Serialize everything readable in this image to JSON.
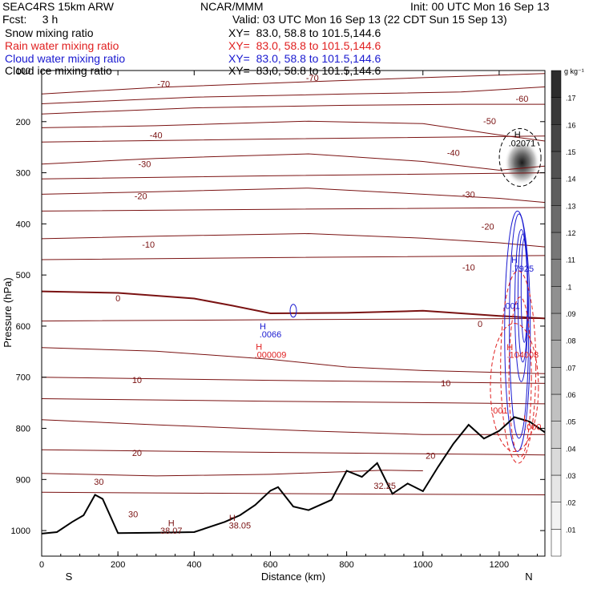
{
  "header": {
    "left_line1": "SEAC4RS 15km ARW",
    "left_line2": "Fcst:     3 h",
    "center_line1": "NCAR/MMM",
    "right_line1": "Init: 00 UTC Mon 16 Sep 13",
    "right_line2": "Valid: 03 UTC Mon 16 Sep 13 (22 CDT Sun 15 Sep 13)"
  },
  "legend": [
    {
      "label": "Snow mixing ratio",
      "xy": "XY=  83.0, 58.8 to 101.5,144.6",
      "color": "#000000"
    },
    {
      "label": "Rain water mixing ratio",
      "xy": "XY=  83.0, 58.8 to 101.5,144.6",
      "color": "#e02020"
    },
    {
      "label": "Cloud water mixing ratio",
      "xy": "XY=  83.0, 58.8 to 101.5,144.6",
      "color": "#1a1ad0"
    },
    {
      "label": "Cloud ice mixing ratio",
      "xy": "XY=  83.0, 58.8 to 101.5,144.6",
      "color": "#000000"
    }
  ],
  "chart_data": {
    "type": "contour-cross-section",
    "xlabel": "Distance (km)",
    "ylabel": "Pressure (hPa)",
    "xlim": [
      0,
      1320
    ],
    "ylim": [
      1050,
      100
    ],
    "x_ticks": [
      0,
      200,
      400,
      600,
      800,
      1000,
      1200
    ],
    "y_ticks": [
      100,
      200,
      300,
      400,
      500,
      600,
      700,
      800,
      900,
      1000
    ],
    "x_ends": {
      "left": "S",
      "right": "N"
    },
    "colorbar": {
      "units": "g kg⁻¹",
      "levels": [
        ".01",
        ".02",
        ".03",
        ".04",
        ".05",
        ".06",
        ".07",
        ".08",
        ".09",
        ".1",
        ".11",
        ".12",
        ".13",
        ".14",
        ".15",
        ".16",
        ".17"
      ]
    },
    "temperature_contours": [
      {
        "label": "-70",
        "p": [
          [
            0,
            146
          ],
          [
            300,
            133
          ],
          [
            700,
            122
          ],
          [
            1000,
            114
          ],
          [
            1320,
            106
          ]
        ],
        "labels_at": [
          [
            320,
            126
          ],
          [
            710,
            114
          ]
        ]
      },
      {
        "label": "-60",
        "p": [
          [
            0,
            165
          ],
          [
            400,
            152
          ],
          [
            800,
            146
          ],
          [
            1100,
            142
          ],
          [
            1320,
            132
          ]
        ],
        "labels_at": [
          [
            1260,
            155
          ]
        ]
      },
      {
        "label": "-50",
        "p": [
          [
            0,
            185
          ],
          [
            400,
            173
          ],
          [
            800,
            168
          ],
          [
            1100,
            166
          ],
          [
            1320,
            166
          ]
        ],
        "labels_at": [
          [
            1175,
            199
          ]
        ]
      },
      {
        "label": "-40",
        "p": [
          [
            0,
            212
          ],
          [
            300,
            208
          ],
          [
            700,
            199
          ],
          [
            1000,
            204
          ],
          [
            1200,
            226
          ],
          [
            1320,
            238
          ]
        ],
        "labels_at": [
          [
            300,
            226
          ],
          [
            1080,
            261
          ]
        ]
      },
      {
        "label": "-30",
        "p": [
          [
            0,
            283
          ],
          [
            300,
            272
          ],
          [
            700,
            263
          ],
          [
            1000,
            278
          ],
          [
            1200,
            295
          ],
          [
            1320,
            287
          ]
        ],
        "labels_at": [
          [
            270,
            283
          ],
          [
            1120,
            342
          ]
        ]
      },
      {
        "label": "-20",
        "p": [
          [
            0,
            342
          ],
          [
            300,
            337
          ],
          [
            700,
            330
          ],
          [
            1000,
            342
          ],
          [
            1200,
            350
          ],
          [
            1320,
            358
          ]
        ],
        "labels_at": [
          [
            260,
            345
          ],
          [
            1170,
            405
          ]
        ]
      },
      {
        "label": "-10",
        "p": [
          [
            0,
            429
          ],
          [
            300,
            424
          ],
          [
            700,
            419
          ],
          [
            1000,
            428
          ],
          [
            1200,
            437
          ],
          [
            1320,
            445
          ]
        ],
        "labels_at": [
          [
            280,
            440
          ],
          [
            1120,
            485
          ]
        ]
      },
      {
        "label": "0",
        "p": [
          [
            0,
            532
          ],
          [
            200,
            535
          ],
          [
            400,
            546
          ],
          [
            500,
            560
          ],
          [
            600,
            575
          ],
          [
            800,
            574
          ],
          [
            1000,
            570
          ],
          [
            1200,
            580
          ],
          [
            1320,
            585
          ]
        ],
        "labels_at": [
          [
            200,
            545
          ],
          [
            1150,
            595
          ]
        ],
        "bold": true
      },
      {
        "label": "10",
        "p": [
          [
            0,
            642
          ],
          [
            300,
            649
          ],
          [
            600,
            665
          ],
          [
            800,
            680
          ],
          [
            1000,
            687
          ],
          [
            1320,
            693
          ]
        ],
        "labels_at": [
          [
            250,
            705
          ],
          [
            1060,
            711
          ]
        ]
      },
      {
        "label": "20",
        "p": [
          [
            0,
            783
          ],
          [
            300,
            793
          ],
          [
            700,
            805
          ],
          [
            1000,
            812
          ],
          [
            1320,
            812
          ]
        ],
        "labels_at": [
          [
            250,
            848
          ],
          [
            1020,
            853
          ]
        ]
      },
      {
        "label": "30",
        "p": [
          [
            0,
            888
          ],
          [
            300,
            893
          ],
          [
            600,
            890
          ],
          [
            900,
            882
          ],
          [
            1000,
            883
          ]
        ],
        "labels_at": [
          [
            150,
            904
          ],
          [
            240,
            968
          ]
        ]
      }
    ],
    "terrain_km_hPa": [
      [
        0,
        1006
      ],
      [
        40,
        1003
      ],
      [
        80,
        983
      ],
      [
        110,
        970
      ],
      [
        140,
        930
      ],
      [
        160,
        938
      ],
      [
        200,
        1005
      ],
      [
        300,
        1004
      ],
      [
        400,
        1003
      ],
      [
        480,
        983
      ],
      [
        520,
        970
      ],
      [
        560,
        950
      ],
      [
        600,
        922
      ],
      [
        620,
        915
      ],
      [
        660,
        953
      ],
      [
        700,
        960
      ],
      [
        760,
        940
      ],
      [
        800,
        883
      ],
      [
        840,
        895
      ],
      [
        880,
        868
      ],
      [
        920,
        928
      ],
      [
        960,
        908
      ],
      [
        1000,
        923
      ],
      [
        1040,
        875
      ],
      [
        1080,
        830
      ],
      [
        1120,
        793
      ],
      [
        1160,
        820
      ],
      [
        1200,
        805
      ],
      [
        1240,
        778
      ],
      [
        1280,
        787
      ],
      [
        1320,
        808
      ]
    ],
    "cloud_water_max": ".7925",
    "cloud_water_min_labels": [
      ".0066"
    ],
    "rain_water_labels": [
      ".000009",
      ".104003",
      ".001",
      ".000"
    ],
    "snow_max": ".02071",
    "surface_temp_labels": [
      "38.07",
      "38.05",
      "32.25"
    ]
  }
}
